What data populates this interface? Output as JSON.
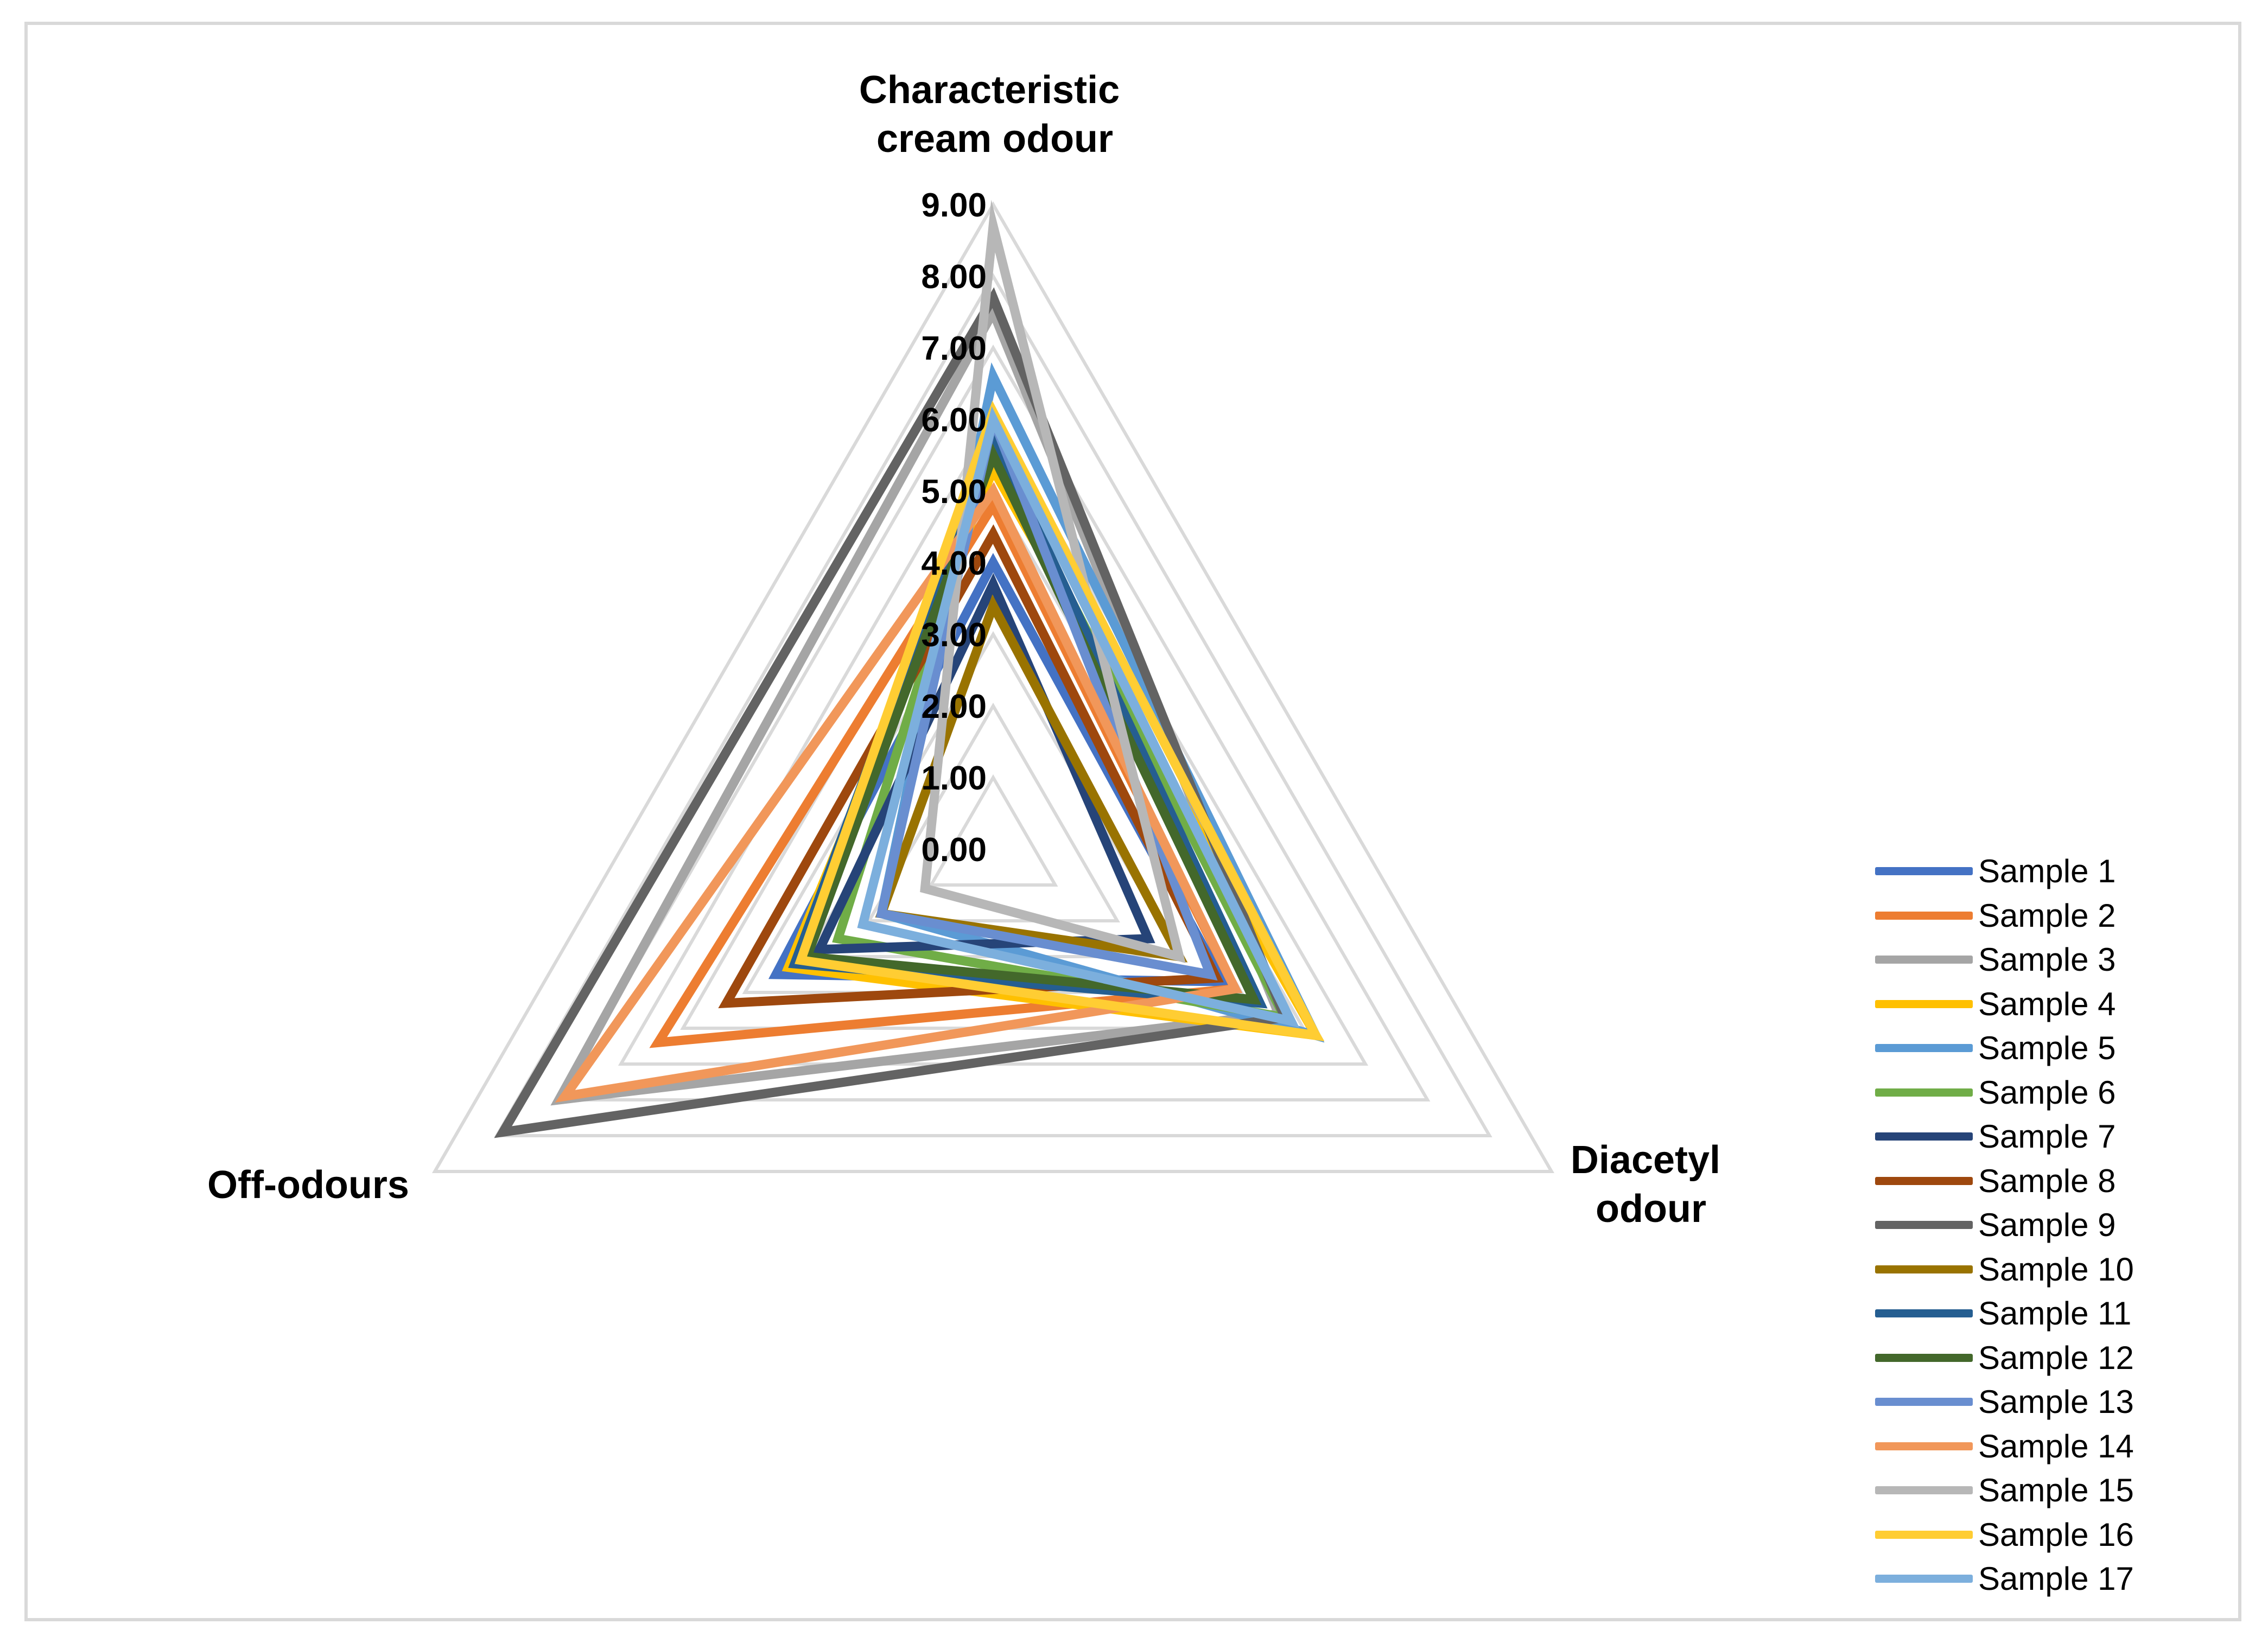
{
  "chart_data": {
    "type": "radar",
    "axes": [
      "Characteristic cream odour",
      "Diacetyl odour",
      "Off-odours"
    ],
    "axis_title_lines": [
      [
        "Characteristic",
        "cream odour"
      ],
      [
        "Diacetyl",
        "odour"
      ],
      [
        "Off-odours"
      ]
    ],
    "r_ticks": [
      "0.00",
      "1.00",
      "2.00",
      "3.00",
      "4.00",
      "5.00",
      "6.00",
      "7.00",
      "8.00",
      "9.00"
    ],
    "rlim": [
      0,
      9
    ],
    "grid": true,
    "legend_position": "bottom-right",
    "series": [
      {
        "name": "Sample 1",
        "color": "#4472C4",
        "values": [
          4.0,
          3.7,
          3.5
        ]
      },
      {
        "name": "Sample 2",
        "color": "#ED7D31",
        "values": [
          4.8,
          3.9,
          5.4
        ]
      },
      {
        "name": "Sample 3",
        "color": "#A5A5A5",
        "values": [
          7.5,
          4.6,
          7.0
        ]
      },
      {
        "name": "Sample 4",
        "color": "#FFC000",
        "values": [
          5.3,
          5.2,
          3.3
        ]
      },
      {
        "name": "Sample 5",
        "color": "#5B9BD5",
        "values": [
          6.6,
          5.2,
          1.8
        ]
      },
      {
        "name": "Sample 6",
        "color": "#70AD47",
        "values": [
          5.6,
          4.7,
          2.5
        ]
      },
      {
        "name": "Sample 7",
        "color": "#264478",
        "values": [
          3.7,
          2.5,
          2.8
        ]
      },
      {
        "name": "Sample 8",
        "color": "#9E480E",
        "values": [
          4.4,
          3.6,
          4.3
        ]
      },
      {
        "name": "Sample 9",
        "color": "#636363",
        "values": [
          7.7,
          4.7,
          7.9
        ]
      },
      {
        "name": "Sample 10",
        "color": "#997300",
        "values": [
          3.4,
          3.0,
          1.8
        ]
      },
      {
        "name": "Sample 11",
        "color": "#255E91",
        "values": [
          5.8,
          4.3,
          3.2
        ]
      },
      {
        "name": "Sample 12",
        "color": "#43682B",
        "values": [
          5.5,
          4.2,
          3.0
        ]
      },
      {
        "name": "Sample 13",
        "color": "#698ED0",
        "values": [
          6.0,
          3.5,
          1.8
        ]
      },
      {
        "name": "Sample 14",
        "color": "#F1975A",
        "values": [
          5.0,
          3.9,
          6.9
        ]
      },
      {
        "name": "Sample 15",
        "color": "#B7B7B7",
        "values": [
          8.7,
          3.0,
          1.1
        ]
      },
      {
        "name": "Sample 16",
        "color": "#FFCD33",
        "values": [
          6.1,
          5.2,
          3.1
        ]
      },
      {
        "name": "Sample 17",
        "color": "#7CAFDD",
        "values": [
          6.0,
          4.8,
          2.1
        ]
      }
    ]
  }
}
